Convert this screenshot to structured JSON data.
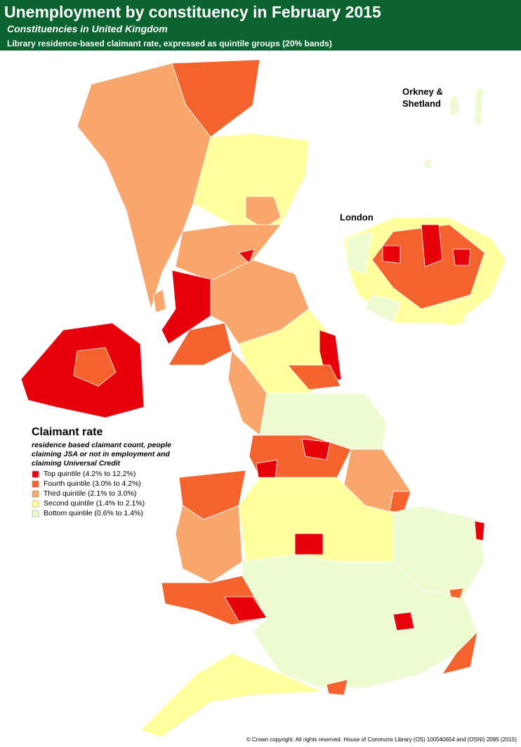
{
  "header": {
    "title": "Unemployment by constituency in February 2015",
    "subtitle": "Constituencies in United Kingdom",
    "description": "Library residence-based claimant rate, expressed as quintile groups (20% bands)"
  },
  "labels": {
    "islands": "Orkney & Shetland",
    "london": "London"
  },
  "legend": {
    "title": "Claimant rate",
    "description": "residence based claimant count, people claiming JSA or not in employment and claiming Universal Credit",
    "items": [
      {
        "label": "Top quintile (4.2% to 12.2%)",
        "color": "#e8000b"
      },
      {
        "label": "Fourth quintile (3.0% to 4.2%)",
        "color": "#f4622e"
      },
      {
        "label": "Third quintile (2.1% to 3.0%)",
        "color": "#f8a66c"
      },
      {
        "label": "Second quintile (1.4% to 2.1%)",
        "color": "#ffff9e"
      },
      {
        "label": "Bottom quintile (0.6% to 1.4%)",
        "color": "#eefad2"
      }
    ]
  },
  "footer": {
    "copyright": "© Crown copyright. All rights reserved. House of Commons Library (OS) 100040654 and (OSNI) 2085 (2015)"
  }
}
